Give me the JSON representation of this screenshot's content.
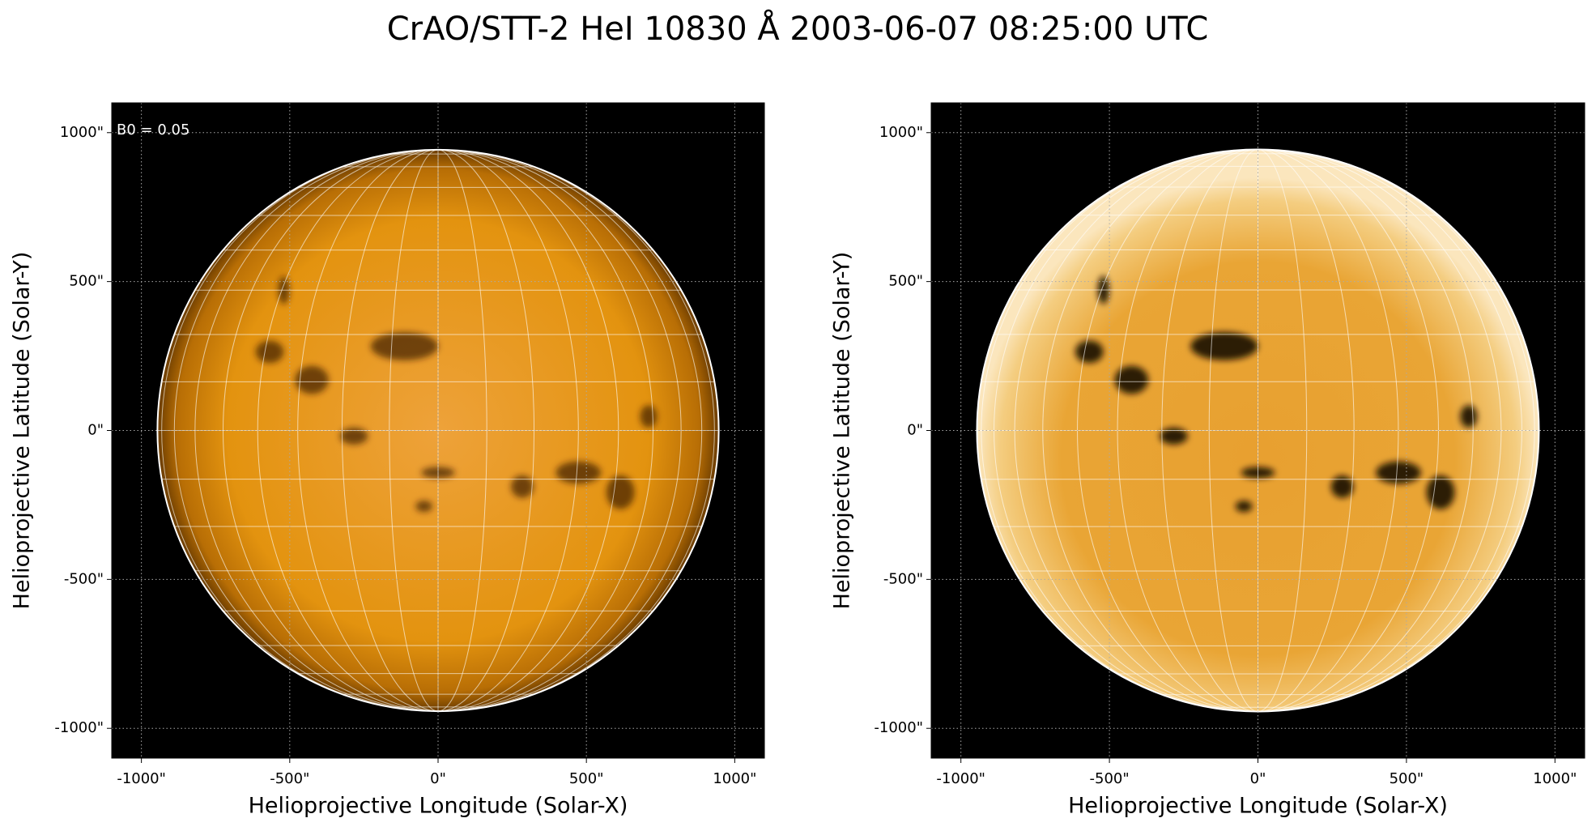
{
  "title": "CrAO/STT-2 HeI 10830 Å 2003-06-07 08:25:00 UTC",
  "chart_data": [
    {
      "type": "image",
      "annotations": [
        "B0 = 0.05"
      ],
      "xlabel": "Helioprojective Longitude (Solar-X)",
      "ylabel": "Helioprojective Latitude (Solar-Y)",
      "xlim": [
        -1100,
        1100
      ],
      "ylim": [
        -1100,
        1100
      ],
      "xticks": [
        {
          "value": -1000,
          "label": "-1000\""
        },
        {
          "value": -500,
          "label": "-500\""
        },
        {
          "value": 0,
          "label": "0\""
        },
        {
          "value": 500,
          "label": "500\""
        },
        {
          "value": 1000,
          "label": "1000\""
        }
      ],
      "yticks": [
        {
          "value": -1000,
          "label": "-1000\""
        },
        {
          "value": -500,
          "label": "-500\""
        },
        {
          "value": 0,
          "label": "0\""
        },
        {
          "value": 500,
          "label": "500\""
        },
        {
          "value": 1000,
          "label": "1000\""
        }
      ],
      "grid": true
    },
    {
      "type": "image",
      "xlabel": "Helioprojective Longitude (Solar-X)",
      "ylabel": "Helioprojective Latitude (Solar-Y)",
      "xlim": [
        -1100,
        1100
      ],
      "ylim": [
        -1100,
        1100
      ],
      "xticks": [
        {
          "value": -1000,
          "label": "-1000\""
        },
        {
          "value": -500,
          "label": "-500\""
        },
        {
          "value": 0,
          "label": "0\""
        },
        {
          "value": 500,
          "label": "500\""
        },
        {
          "value": 1000,
          "label": "1000\""
        }
      ],
      "yticks": [
        {
          "value": -1000,
          "label": "-1000\""
        },
        {
          "value": -500,
          "label": "-500\""
        },
        {
          "value": 0,
          "label": "0\""
        },
        {
          "value": 500,
          "label": "500\""
        },
        {
          "value": 1000,
          "label": "1000\""
        }
      ],
      "grid": true
    }
  ]
}
